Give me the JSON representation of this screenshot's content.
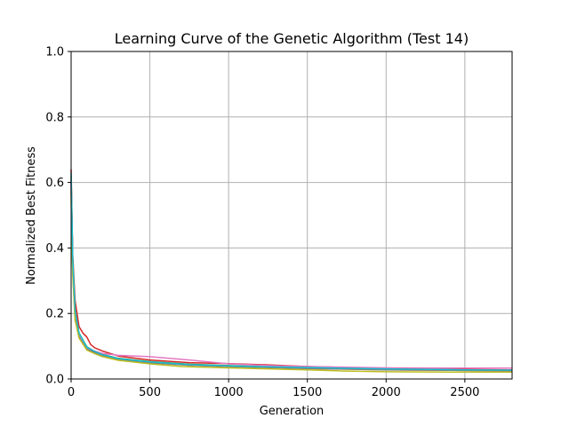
{
  "chart_data": {
    "type": "line",
    "title": "Learning Curve of the Genetic Algorithm (Test 14)",
    "xlabel": "Generation",
    "ylabel": "Normalized Best Fitness",
    "xlim": [
      0,
      2800
    ],
    "ylim": [
      0.0,
      1.0
    ],
    "xticks": [
      0,
      500,
      1000,
      1500,
      2000,
      2500
    ],
    "xtick_labels": [
      "0",
      "500",
      "1000",
      "1500",
      "2000",
      "2500"
    ],
    "yticks": [
      0.0,
      0.2,
      0.4,
      0.6,
      0.8,
      1.0
    ],
    "ytick_labels": [
      "0.0",
      "0.2",
      "0.4",
      "0.6",
      "0.8",
      "1.0"
    ],
    "grid": true,
    "legend": false,
    "series": [
      {
        "color": "#1f77b4",
        "x": [
          0,
          10,
          25,
          50,
          100,
          150,
          200,
          300,
          500,
          750,
          1000,
          1250,
          1500,
          2000,
          2500,
          2800
        ],
        "y": [
          0.6,
          0.35,
          0.2,
          0.135,
          0.095,
          0.082,
          0.073,
          0.062,
          0.052,
          0.044,
          0.04,
          0.036,
          0.033,
          0.029,
          0.027,
          0.026
        ]
      },
      {
        "color": "#ff7f0e",
        "x": [
          0,
          10,
          25,
          50,
          100,
          150,
          200,
          300,
          500,
          750,
          1000,
          1250,
          1500,
          2000,
          2500,
          2800
        ],
        "y": [
          0.58,
          0.34,
          0.19,
          0.13,
          0.092,
          0.08,
          0.071,
          0.06,
          0.05,
          0.042,
          0.038,
          0.035,
          0.032,
          0.028,
          0.026,
          0.025
        ]
      },
      {
        "color": "#2ca02c",
        "x": [
          0,
          10,
          25,
          50,
          100,
          150,
          200,
          300,
          500,
          750,
          1000,
          1250,
          1500,
          2000,
          2500,
          2800
        ],
        "y": [
          0.62,
          0.36,
          0.21,
          0.14,
          0.098,
          0.084,
          0.075,
          0.063,
          0.053,
          0.045,
          0.041,
          0.037,
          0.034,
          0.03,
          0.028,
          0.027
        ]
      },
      {
        "color": "#d62728",
        "x": [
          0,
          10,
          25,
          50,
          75,
          100,
          125,
          150,
          200,
          300,
          500,
          750,
          1000,
          1250,
          1500,
          2000,
          2500,
          2800
        ],
        "y": [
          0.64,
          0.38,
          0.24,
          0.16,
          0.14,
          0.128,
          0.105,
          0.095,
          0.085,
          0.07,
          0.058,
          0.05,
          0.047,
          0.043,
          0.038,
          0.032,
          0.029,
          0.028
        ]
      },
      {
        "color": "#9467bd",
        "x": [
          0,
          10,
          25,
          50,
          100,
          150,
          200,
          300,
          500,
          750,
          1000,
          1250,
          1500,
          2000,
          2500,
          2800
        ],
        "y": [
          0.59,
          0.35,
          0.2,
          0.135,
          0.094,
          0.081,
          0.072,
          0.061,
          0.051,
          0.043,
          0.039,
          0.036,
          0.033,
          0.029,
          0.027,
          0.026
        ]
      },
      {
        "color": "#8c564b",
        "x": [
          0,
          10,
          25,
          50,
          100,
          150,
          200,
          300,
          500,
          750,
          1000,
          1250,
          1500,
          2000,
          2500,
          2800
        ],
        "y": [
          0.61,
          0.36,
          0.2,
          0.138,
          0.096,
          0.083,
          0.074,
          0.062,
          0.052,
          0.044,
          0.04,
          0.036,
          0.033,
          0.029,
          0.027,
          0.026
        ]
      },
      {
        "color": "#e377c2",
        "x": [
          0,
          10,
          25,
          50,
          100,
          150,
          200,
          300,
          500,
          750,
          1000,
          1250,
          1500,
          2000,
          2500,
          2800
        ],
        "y": [
          0.6,
          0.35,
          0.2,
          0.136,
          0.095,
          0.085,
          0.078,
          0.072,
          0.068,
          0.058,
          0.046,
          0.041,
          0.038,
          0.034,
          0.033,
          0.033
        ]
      },
      {
        "color": "#7f7f7f",
        "x": [
          0,
          10,
          25,
          50,
          100,
          150,
          200,
          300,
          500,
          750,
          1000,
          1250,
          1500,
          2000,
          2500,
          2800
        ],
        "y": [
          0.57,
          0.33,
          0.19,
          0.128,
          0.09,
          0.079,
          0.07,
          0.059,
          0.049,
          0.042,
          0.038,
          0.035,
          0.032,
          0.028,
          0.026,
          0.025
        ]
      },
      {
        "color": "#bcbd22",
        "x": [
          0,
          10,
          25,
          50,
          100,
          150,
          200,
          300,
          500,
          700,
          1000,
          1250,
          1500,
          1750,
          2000,
          2500,
          2800
        ],
        "y": [
          0.55,
          0.32,
          0.18,
          0.125,
          0.088,
          0.077,
          0.068,
          0.057,
          0.046,
          0.038,
          0.034,
          0.031,
          0.028,
          0.024,
          0.022,
          0.021,
          0.021
        ]
      },
      {
        "color": "#17becf",
        "x": [
          0,
          10,
          25,
          50,
          100,
          150,
          200,
          300,
          500,
          750,
          1000,
          1250,
          1500,
          2000,
          2500,
          2800
        ],
        "y": [
          0.63,
          0.37,
          0.21,
          0.14,
          0.097,
          0.084,
          0.074,
          0.062,
          0.052,
          0.044,
          0.04,
          0.037,
          0.035,
          0.031,
          0.028,
          0.027
        ]
      }
    ]
  }
}
